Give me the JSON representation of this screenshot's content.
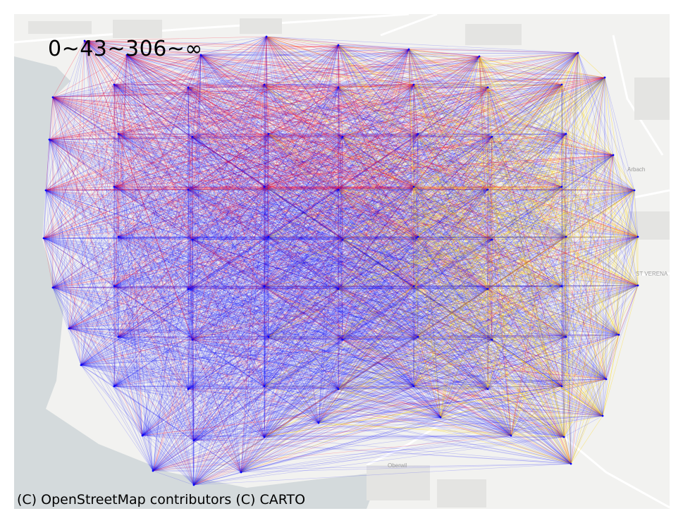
{
  "legend": {
    "text": "0~43~306~∞"
  },
  "attribution": {
    "text": "(C) OpenStreetMap contributors (C) CARTO"
  },
  "places": [
    {
      "name": "Arbach"
    },
    {
      "name": "ST VERENA"
    },
    {
      "name": "Oberwil"
    }
  ],
  "colors": {
    "water": "#d4dadc",
    "land": "#f2f2f0",
    "road": "#ffffff",
    "band_low": "#0000ff",
    "band_mid": "#ff0022",
    "band_high": "#ffd700"
  },
  "color_bands": [
    {
      "from": 0,
      "to": 43,
      "color": "#0000ff"
    },
    {
      "from": 43,
      "to": 306,
      "color": "#ff0022"
    },
    {
      "from": 306,
      "to": "∞",
      "color": "#ffd700"
    }
  ]
}
